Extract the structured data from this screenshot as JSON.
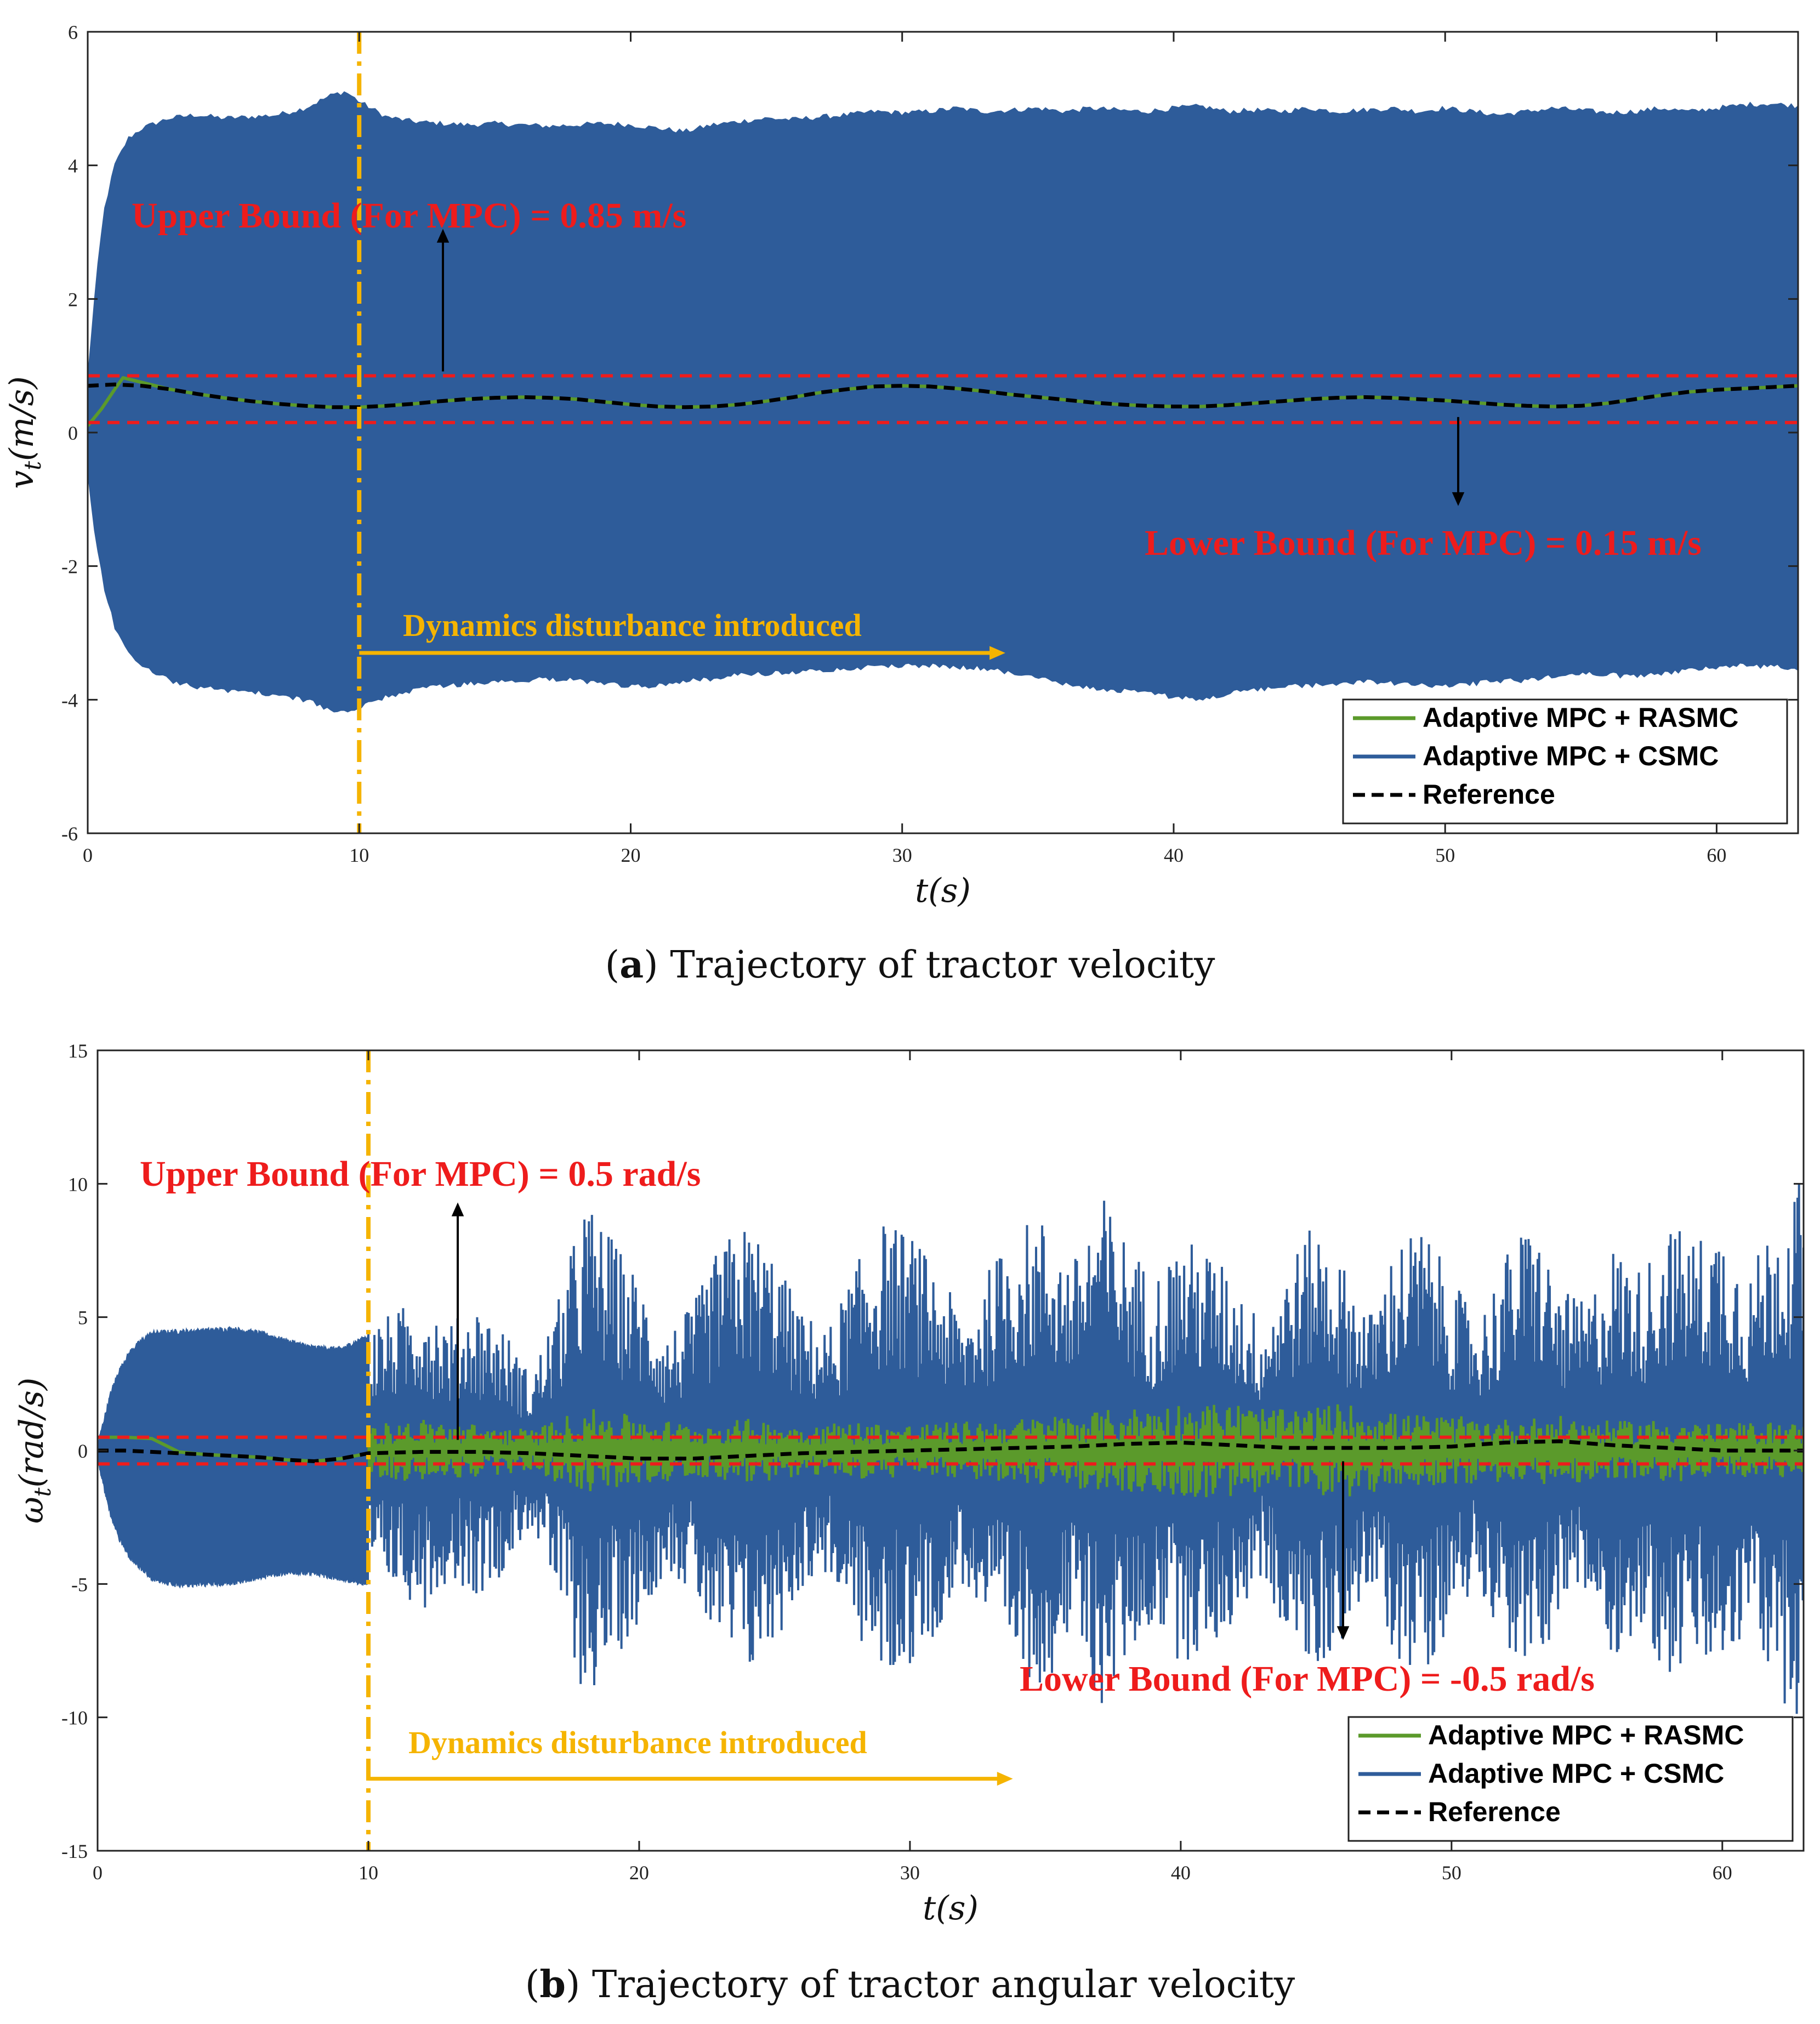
{
  "colors": {
    "blue": "#2e5c9a",
    "green": "#5b9a2b",
    "reference": "#000000",
    "bound": "#ee1c1c",
    "disturbance": "#f5b400",
    "annotation_red": "#ee1c1c",
    "annotation_yellow": "#f5b400"
  },
  "chart_data": [
    {
      "id": "a",
      "type": "line",
      "caption_label": "a",
      "caption_text": "Trajectory of tractor velocity",
      "xlabel": "t(s)",
      "ylabel": "v_t(m/s)",
      "xlim": [
        0,
        63
      ],
      "ylim": [
        -6,
        6
      ],
      "xticks": [
        0,
        10,
        20,
        30,
        40,
        50,
        60
      ],
      "yticks": [
        -6,
        -4,
        -2,
        0,
        2,
        4,
        6
      ],
      "legend": {
        "position": "bottom-right",
        "entries": [
          {
            "label": "Adaptive MPC + RASMC",
            "color": "#5b9a2b",
            "style": "solid"
          },
          {
            "label": "Adaptive MPC + CSMC",
            "color": "#2e5c9a",
            "style": "solid"
          },
          {
            "label": "Reference",
            "color": "#000000",
            "style": "dashed"
          }
        ]
      },
      "bounds": {
        "upper": 0.85,
        "lower": 0.15
      },
      "disturbance_time": 10,
      "annotations": {
        "upper_text": "Upper Bound (For MPC) = 0.85 m/s",
        "lower_text": "Lower Bound (For MPC) = 0.15 m/s",
        "disturbance_text": "Dynamics disturbance introduced"
      },
      "series": [
        {
          "name": "Adaptive MPC + CSMC",
          "kind": "envelope",
          "x": [
            0,
            0.3,
            0.6,
            1,
            1.5,
            2,
            3,
            4,
            5,
            6,
            7,
            8,
            9,
            9.5,
            10,
            11,
            12,
            13,
            14,
            15,
            16,
            17,
            18,
            19,
            20,
            21,
            22,
            23,
            24,
            25,
            26,
            27,
            28,
            29,
            30,
            31,
            32,
            33,
            34,
            35,
            36,
            37,
            38,
            39,
            40,
            41,
            42,
            43,
            44,
            45,
            46,
            47,
            48,
            49,
            50,
            51,
            52,
            53,
            54,
            55,
            56,
            57,
            58,
            59,
            60,
            61,
            62,
            63
          ],
          "upper": [
            0.8,
            2.2,
            3.3,
            4.0,
            4.4,
            4.55,
            4.7,
            4.75,
            4.7,
            4.72,
            4.75,
            4.85,
            5.05,
            5.1,
            4.95,
            4.72,
            4.65,
            4.62,
            4.6,
            4.62,
            4.6,
            4.58,
            4.6,
            4.62,
            4.6,
            4.55,
            4.5,
            4.6,
            4.65,
            4.7,
            4.68,
            4.72,
            4.75,
            4.8,
            4.78,
            4.8,
            4.85,
            4.8,
            4.82,
            4.85,
            4.8,
            4.85,
            4.82,
            4.8,
            4.85,
            4.88,
            4.8,
            4.82,
            4.8,
            4.85,
            4.8,
            4.82,
            4.85,
            4.8,
            4.85,
            4.8,
            4.75,
            4.8,
            4.85,
            4.82,
            4.78,
            4.8,
            4.85,
            4.8,
            4.85,
            4.9,
            4.92,
            4.88
          ],
          "lower": [
            -0.6,
            -1.6,
            -2.3,
            -2.9,
            -3.3,
            -3.5,
            -3.7,
            -3.8,
            -3.85,
            -3.88,
            -3.92,
            -4.0,
            -4.15,
            -4.2,
            -4.12,
            -3.95,
            -3.85,
            -3.8,
            -3.75,
            -3.72,
            -3.7,
            -3.68,
            -3.7,
            -3.75,
            -3.8,
            -3.78,
            -3.72,
            -3.68,
            -3.62,
            -3.6,
            -3.58,
            -3.55,
            -3.52,
            -3.5,
            -3.48,
            -3.48,
            -3.5,
            -3.52,
            -3.6,
            -3.65,
            -3.75,
            -3.82,
            -3.85,
            -3.9,
            -3.95,
            -4.0,
            -3.9,
            -3.85,
            -3.8,
            -3.78,
            -3.75,
            -3.72,
            -3.75,
            -3.78,
            -3.8,
            -3.75,
            -3.72,
            -3.7,
            -3.65,
            -3.6,
            -3.62,
            -3.65,
            -3.6,
            -3.55,
            -3.5,
            -3.48,
            -3.5,
            -3.52
          ]
        },
        {
          "name": "Adaptive MPC + RASMC",
          "kind": "line",
          "x": [
            0,
            0.5,
            1,
            1.3,
            2,
            3,
            4,
            5,
            6,
            7,
            8,
            9,
            10,
            11,
            12,
            13,
            14,
            15,
            16,
            17,
            18,
            19,
            20,
            21,
            22,
            23,
            24,
            25,
            26,
            27,
            28,
            29,
            30,
            31,
            32,
            33,
            34,
            35,
            36,
            37,
            38,
            39,
            40,
            41,
            42,
            43,
            44,
            45,
            46,
            47,
            48,
            49,
            50,
            51,
            52,
            53,
            54,
            55,
            56,
            57,
            58,
            59,
            60,
            61,
            62,
            63
          ],
          "values": [
            0.1,
            0.35,
            0.65,
            0.82,
            0.75,
            0.65,
            0.58,
            0.52,
            0.47,
            0.43,
            0.4,
            0.38,
            0.38,
            0.4,
            0.43,
            0.47,
            0.5,
            0.52,
            0.53,
            0.52,
            0.5,
            0.46,
            0.42,
            0.39,
            0.38,
            0.39,
            0.42,
            0.47,
            0.53,
            0.6,
            0.65,
            0.69,
            0.7,
            0.69,
            0.66,
            0.62,
            0.57,
            0.53,
            0.49,
            0.45,
            0.42,
            0.4,
            0.39,
            0.39,
            0.41,
            0.44,
            0.47,
            0.5,
            0.52,
            0.53,
            0.52,
            0.5,
            0.48,
            0.45,
            0.42,
            0.4,
            0.39,
            0.4,
            0.44,
            0.5,
            0.56,
            0.61,
            0.64,
            0.66,
            0.68,
            0.7
          ]
        },
        {
          "name": "Reference",
          "kind": "line",
          "x": [
            0,
            1,
            2,
            3,
            4,
            5,
            6,
            7,
            8,
            9,
            10,
            11,
            12,
            13,
            14,
            15,
            16,
            17,
            18,
            19,
            20,
            21,
            22,
            23,
            24,
            25,
            26,
            27,
            28,
            29,
            30,
            31,
            32,
            33,
            34,
            35,
            36,
            37,
            38,
            39,
            40,
            41,
            42,
            43,
            44,
            45,
            46,
            47,
            48,
            49,
            50,
            51,
            52,
            53,
            54,
            55,
            56,
            57,
            58,
            59,
            60,
            61,
            62,
            63
          ],
          "values": [
            0.7,
            0.72,
            0.7,
            0.65,
            0.58,
            0.52,
            0.47,
            0.43,
            0.4,
            0.38,
            0.38,
            0.4,
            0.43,
            0.47,
            0.5,
            0.52,
            0.53,
            0.52,
            0.5,
            0.46,
            0.42,
            0.39,
            0.38,
            0.39,
            0.42,
            0.47,
            0.53,
            0.6,
            0.65,
            0.69,
            0.7,
            0.69,
            0.66,
            0.62,
            0.57,
            0.53,
            0.49,
            0.45,
            0.42,
            0.4,
            0.39,
            0.39,
            0.41,
            0.44,
            0.47,
            0.5,
            0.52,
            0.53,
            0.52,
            0.5,
            0.48,
            0.45,
            0.42,
            0.4,
            0.39,
            0.4,
            0.44,
            0.5,
            0.56,
            0.61,
            0.64,
            0.66,
            0.68,
            0.7
          ]
        }
      ]
    },
    {
      "id": "b",
      "type": "line",
      "caption_label": "b",
      "caption_text": "Trajectory of tractor angular velocity",
      "xlabel": "t(s)",
      "ylabel": "ω_t(rad/s)",
      "xlim": [
        0,
        63
      ],
      "ylim": [
        -15,
        15
      ],
      "xticks": [
        0,
        10,
        20,
        30,
        40,
        50,
        60
      ],
      "yticks": [
        -15,
        -10,
        -5,
        0,
        5,
        10,
        15
      ],
      "legend": {
        "position": "bottom-right",
        "entries": [
          {
            "label": "Adaptive MPC + RASMC",
            "color": "#5b9a2b",
            "style": "solid"
          },
          {
            "label": "Adaptive MPC + CSMC",
            "color": "#2e5c9a",
            "style": "solid"
          },
          {
            "label": "Reference",
            "color": "#000000",
            "style": "dashed"
          }
        ]
      },
      "bounds": {
        "upper": 0.5,
        "lower": -0.5
      },
      "disturbance_time": 10,
      "annotations": {
        "upper_text": "Upper Bound (For MPC) = 0.5 rad/s",
        "lower_text": "Lower Bound (For MPC) = -0.5 rad/s",
        "disturbance_text": "Dynamics disturbance introduced"
      },
      "series": [
        {
          "name": "Adaptive MPC + CSMC",
          "kind": "envelope",
          "x": [
            0,
            0.2,
            0.5,
            0.8,
            1.2,
            1.6,
            2,
            3,
            4,
            5,
            6,
            7,
            8,
            9,
            10
          ],
          "upper": [
            0.2,
            1.0,
            2.2,
            3.0,
            3.7,
            4.1,
            4.4,
            4.45,
            4.5,
            4.55,
            4.4,
            4.1,
            3.85,
            3.8,
            4.3
          ],
          "lower": [
            -0.3,
            -1.2,
            -2.5,
            -3.3,
            -4.0,
            -4.4,
            -4.8,
            -5.05,
            -5.0,
            -4.95,
            -4.75,
            -4.55,
            -4.6,
            -4.8,
            -5.0
          ]
        },
        {
          "name": "Adaptive MPC + CSMC",
          "kind": "noise",
          "amplitude": {
            "x": [
              10,
              11,
              12,
              13,
              14,
              15,
              16,
              17,
              18,
              19,
              20,
              21,
              22,
              23,
              24,
              25,
              26,
              27,
              28,
              29,
              30,
              31,
              32,
              33,
              34,
              35,
              36,
              37,
              38,
              39,
              40,
              41,
              42,
              43,
              44,
              45,
              46,
              47,
              48,
              49,
              50,
              51,
              52,
              53,
              54,
              55,
              56,
              57,
              58,
              59,
              60,
              61,
              62,
              63
            ],
            "values": [
              4.8,
              5.2,
              6.0,
              4.8,
              5.5,
              4.6,
              2.8,
              5.6,
              9.5,
              8.0,
              6.5,
              4.4,
              5.5,
              7.8,
              8.6,
              7.4,
              5.2,
              4.6,
              7.0,
              8.6,
              8.2,
              6.8,
              5.0,
              7.0,
              8.5,
              8.8,
              7.0,
              9.8,
              8.0,
              6.5,
              8.0,
              7.6,
              6.5,
              4.8,
              7.2,
              8.6,
              7.0,
              5.2,
              8.0,
              8.4,
              6.4,
              5.0,
              7.4,
              8.8,
              6.0,
              5.6,
              7.8,
              6.8,
              8.6,
              8.0,
              8.6,
              6.6,
              9.2,
              10.2
            ]
          }
        },
        {
          "name": "Adaptive MPC + RASMC",
          "kind": "line",
          "x": [
            0,
            1,
            2,
            3,
            4,
            5,
            6,
            7,
            8,
            9,
            10
          ],
          "values": [
            0.5,
            0.5,
            0.45,
            -0.05,
            -0.15,
            -0.2,
            -0.25,
            -0.35,
            -0.4,
            -0.3,
            -0.1
          ]
        },
        {
          "name": "Adaptive MPC + RASMC",
          "kind": "noise",
          "amplitude": {
            "x": [
              10,
              12,
              14,
              16,
              18,
              20,
              22,
              24,
              26,
              28,
              30,
              32,
              34,
              36,
              38,
              40,
              42,
              44,
              46,
              48,
              50,
              52,
              54,
              56,
              58,
              60,
              62,
              63
            ],
            "values": [
              1.0,
              1.2,
              1.0,
              0.8,
              1.6,
              1.3,
              1.0,
              1.2,
              1.0,
              1.1,
              1.0,
              1.1,
              1.2,
              1.4,
              1.6,
              1.8,
              1.8,
              1.5,
              1.8,
              1.4,
              1.3,
              1.2,
              1.3,
              1.1,
              1.2,
              1.0,
              1.1,
              1.0
            ]
          }
        },
        {
          "name": "Reference",
          "kind": "line",
          "x": [
            0,
            1,
            2,
            3,
            4,
            5,
            6,
            7,
            8,
            9,
            10,
            12,
            14,
            16,
            18,
            20,
            22,
            24,
            26,
            28,
            30,
            32,
            34,
            36,
            38,
            40,
            42,
            44,
            46,
            48,
            50,
            52,
            54,
            56,
            58,
            60,
            62,
            63
          ],
          "values": [
            0.0,
            0.0,
            -0.05,
            -0.1,
            -0.15,
            -0.2,
            -0.25,
            -0.35,
            -0.4,
            -0.3,
            -0.1,
            -0.05,
            -0.05,
            -0.1,
            -0.2,
            -0.3,
            -0.3,
            -0.2,
            -0.1,
            -0.05,
            0.0,
            0.05,
            0.1,
            0.15,
            0.25,
            0.3,
            0.2,
            0.1,
            0.1,
            0.1,
            0.15,
            0.3,
            0.35,
            0.2,
            0.1,
            0.0,
            0.0,
            0.0
          ]
        }
      ]
    }
  ]
}
